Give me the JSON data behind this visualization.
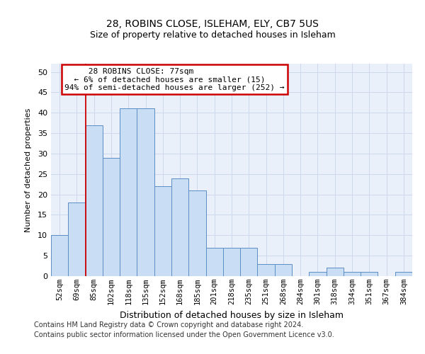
{
  "title1": "28, ROBINS CLOSE, ISLEHAM, ELY, CB7 5US",
  "title2": "Size of property relative to detached houses in Isleham",
  "xlabel": "Distribution of detached houses by size in Isleham",
  "ylabel": "Number of detached properties",
  "categories": [
    "52sqm",
    "69sqm",
    "85sqm",
    "102sqm",
    "118sqm",
    "135sqm",
    "152sqm",
    "168sqm",
    "185sqm",
    "201sqm",
    "218sqm",
    "235sqm",
    "251sqm",
    "268sqm",
    "284sqm",
    "301sqm",
    "318sqm",
    "334sqm",
    "351sqm",
    "367sqm",
    "384sqm"
  ],
  "values": [
    10,
    18,
    37,
    29,
    41,
    41,
    22,
    24,
    21,
    7,
    7,
    7,
    3,
    3,
    0,
    1,
    2,
    1,
    1,
    0,
    1
  ],
  "bar_color": "#c9ddf5",
  "bar_edge_color": "#5b8ec4",
  "ylim": [
    0,
    52
  ],
  "yticks": [
    0,
    5,
    10,
    15,
    20,
    25,
    30,
    35,
    40,
    45,
    50
  ],
  "vline_x": 1.5,
  "annotation_line1": "     28 ROBINS CLOSE: 77sqm",
  "annotation_line2": "  ← 6% of detached houses are smaller (15)",
  "annotation_line3": "94% of semi-detached houses are larger (252) →",
  "annotation_box_color": "#ffffff",
  "annotation_box_edge": "#cc0000",
  "vline_color": "#cc0000",
  "footer1": "Contains HM Land Registry data © Crown copyright and database right 2024.",
  "footer2": "Contains public sector information licensed under the Open Government Licence v3.0.",
  "grid_color": "#cdd8ec",
  "background_color": "#eaf0f9",
  "title1_fontsize": 10,
  "title2_fontsize": 9
}
